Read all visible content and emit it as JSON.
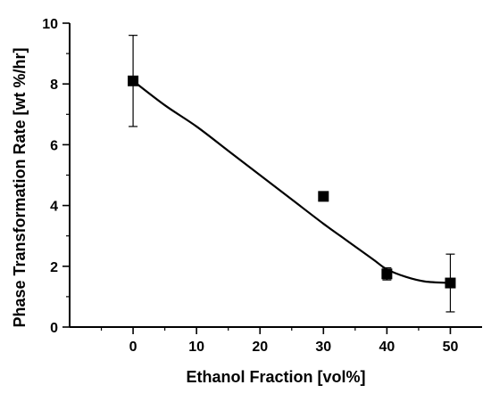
{
  "chart_data": {
    "type": "scatter",
    "xlabel": "Ethanol Fraction [vol%]",
    "ylabel": "Phase Transformation Rate [wt %/hr]",
    "xlim": [
      -10,
      55
    ],
    "ylim": [
      0,
      10
    ],
    "x_ticks": [
      0,
      10,
      20,
      30,
      40,
      50
    ],
    "y_ticks": [
      0,
      2,
      4,
      6,
      8,
      10
    ],
    "x_tick_labels": [
      "0",
      "10",
      "20",
      "30",
      "40",
      "50"
    ],
    "y_tick_labels": [
      "0",
      "2",
      "4",
      "6",
      "8",
      "10"
    ],
    "grid": false,
    "series": [
      {
        "marker": "square",
        "color": "#000000",
        "x": [
          0,
          30,
          40,
          50
        ],
        "y": [
          8.1,
          4.3,
          1.75,
          1.45
        ],
        "err": [
          1.5,
          0.15,
          0.2,
          0.95
        ]
      }
    ],
    "fit_curve": {
      "x": [
        0,
        5,
        10,
        15,
        20,
        25,
        30,
        33,
        36,
        38,
        40,
        43,
        46,
        50
      ],
      "y": [
        8.1,
        7.3,
        6.6,
        5.8,
        5.0,
        4.2,
        3.4,
        2.95,
        2.5,
        2.2,
        1.9,
        1.65,
        1.5,
        1.45
      ]
    }
  }
}
